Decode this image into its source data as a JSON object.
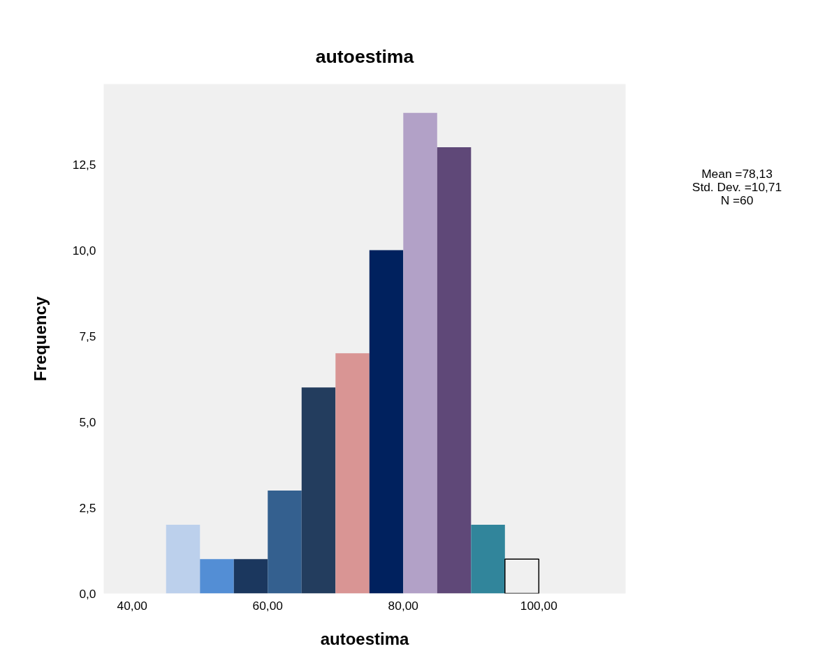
{
  "chart_data": {
    "type": "histogram",
    "title": "autoestima",
    "xlabel": "autoestima",
    "ylabel": "Frequency",
    "bins": [
      45,
      50,
      55,
      60,
      65,
      70,
      75,
      80,
      85,
      90,
      95,
      100
    ],
    "values": [
      2,
      1,
      1,
      3,
      6,
      7,
      10,
      14,
      13,
      2,
      1
    ],
    "colors": [
      "#bcd0ec",
      "#538ed5",
      "#1b375e",
      "#34608f",
      "#233d5e",
      "#d99594",
      "#00215e",
      "#b2a1c7",
      "#5f4878",
      "#31859b",
      "#f0f0f0"
    ],
    "xlim": [
      35.8,
      112.8
    ],
    "ylim": [
      0,
      14.84
    ],
    "xticks": [
      {
        "value": 40,
        "label": "40,00"
      },
      {
        "value": 60,
        "label": "60,00"
      },
      {
        "value": 80,
        "label": "80,00"
      },
      {
        "value": 100,
        "label": "100,00"
      }
    ],
    "yticks": [
      {
        "value": 0,
        "label": "0,0"
      },
      {
        "value": 2.5,
        "label": "2,5"
      },
      {
        "value": 5,
        "label": "5,0"
      },
      {
        "value": 7.5,
        "label": "7,5"
      },
      {
        "value": 10,
        "label": "10,0"
      },
      {
        "value": 12.5,
        "label": "12,5"
      }
    ],
    "annotations": [
      "Mean =78,13",
      "Std. Dev. =10,71",
      "N =60"
    ],
    "grid": false
  }
}
